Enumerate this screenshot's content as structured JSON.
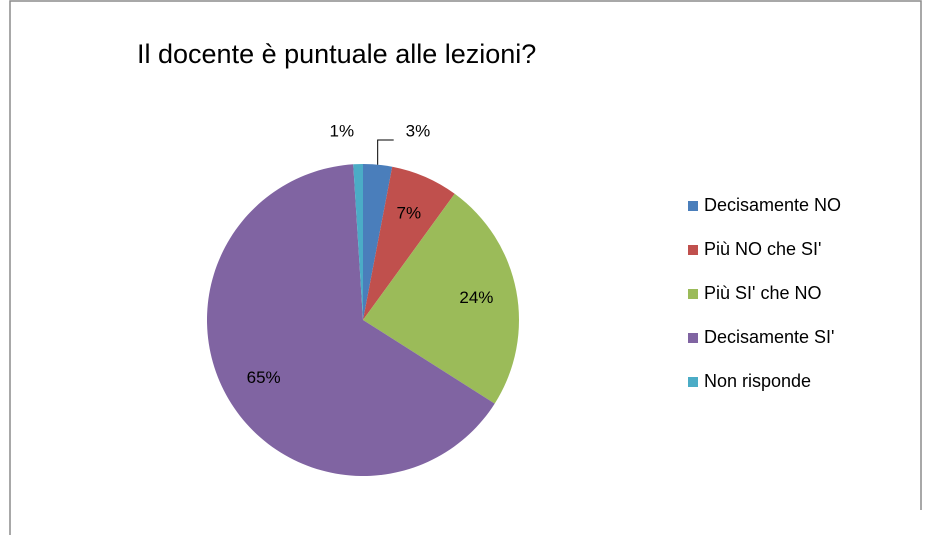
{
  "chart_data": {
    "type": "pie",
    "title": "Il docente è puntuale alle lezioni?",
    "categories": [
      "Decisamente NO",
      "Più NO che SI'",
      "Più SI' che NO",
      "Decisamente SI'",
      "Non risponde"
    ],
    "values": [
      3,
      7,
      24,
      65,
      1
    ],
    "value_labels": [
      "3%",
      "7%",
      "24%",
      "65%",
      "1%"
    ],
    "colors": [
      "#4a7ebb",
      "#c0504d",
      "#9bbb59",
      "#8064a2",
      "#4bacc6"
    ],
    "legend": "right"
  }
}
